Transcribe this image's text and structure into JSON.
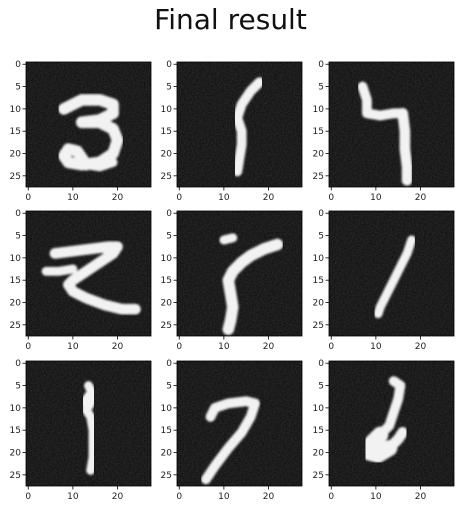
{
  "title": "Final result",
  "chart_data": {
    "type": "image-grid",
    "title": "Final result",
    "rows": 3,
    "cols": 3,
    "image_size": [
      28,
      28
    ],
    "colormap": "gray",
    "xlim": [
      0,
      27
    ],
    "ylim": [
      27,
      0
    ],
    "x_ticks": [
      0,
      10,
      20
    ],
    "y_ticks": [
      0,
      5,
      10,
      15,
      20,
      25
    ],
    "panels": [
      {
        "depicts": "3",
        "strokes": [
          {
            "w": 2.6,
            "pts": [
              [
                8,
                10
              ],
              [
                12,
                8
              ],
              [
                16,
                8
              ],
              [
                19,
                9
              ],
              [
                19,
                11
              ],
              [
                16,
                12.5
              ],
              [
                12,
                13
              ]
            ]
          },
          {
            "w": 2.6,
            "pts": [
              [
                12,
                13
              ],
              [
                16,
                13
              ],
              [
                19,
                14.5
              ],
              [
                20,
                17
              ],
              [
                19,
                20
              ],
              [
                16,
                22
              ],
              [
                12,
                22.5
              ],
              [
                9,
                22
              ],
              [
                8,
                20.5
              ],
              [
                9,
                19
              ],
              [
                11,
                19.5
              ],
              [
                12,
                21
              ],
              [
                13,
                22.5
              ]
            ]
          },
          {
            "w": 2.0,
            "pts": [
              [
                13,
                22.5
              ],
              [
                16,
                23
              ],
              [
                19,
                22
              ]
            ]
          }
        ]
      },
      {
        "depicts": "1",
        "strokes": [
          {
            "w": 2.2,
            "pts": [
              [
                18,
                4
              ],
              [
                16,
                6
              ],
              [
                14,
                9
              ],
              [
                13,
                12
              ],
              [
                14,
                15
              ],
              [
                14,
                18
              ],
              [
                13.5,
                21
              ],
              [
                13,
                24
              ]
            ]
          }
        ]
      },
      {
        "depicts": "4",
        "strokes": [
          {
            "w": 2.2,
            "pts": [
              [
                7,
                5
              ],
              [
                8,
                8
              ],
              [
                8,
                11
              ],
              [
                11,
                11.5
              ],
              [
                14,
                11
              ],
              [
                16,
                11
              ]
            ]
          },
          {
            "w": 2.4,
            "pts": [
              [
                16,
                11
              ],
              [
                16.5,
                15
              ],
              [
                16.5,
                19
              ],
              [
                17,
                23
              ],
              [
                17,
                26
              ]
            ]
          }
        ]
      },
      {
        "depicts": "z",
        "strokes": [
          {
            "w": 2.4,
            "pts": [
              [
                6,
                9
              ],
              [
                10,
                8.5
              ],
              [
                14,
                8
              ],
              [
                18,
                7.5
              ],
              [
                20,
                7.5
              ],
              [
                19,
                9
              ],
              [
                16,
                11
              ],
              [
                13,
                13
              ],
              [
                10,
                15
              ],
              [
                9,
                16
              ],
              [
                10,
                17.5
              ],
              [
                13,
                19
              ],
              [
                17,
                20.5
              ],
              [
                21,
                21.5
              ],
              [
                24,
                21.5
              ]
            ]
          },
          {
            "w": 2.0,
            "pts": [
              [
                4,
                13
              ],
              [
                7,
                13
              ],
              [
                10,
                12.5
              ]
            ]
          }
        ]
      },
      {
        "depicts": "i",
        "strokes": [
          {
            "w": 2.0,
            "pts": [
              [
                10,
                6
              ],
              [
                12,
                5.5
              ]
            ]
          },
          {
            "w": 2.6,
            "pts": [
              [
                22,
                7
              ],
              [
                19,
                8
              ],
              [
                16,
                9.5
              ],
              [
                14,
                11
              ],
              [
                12,
                13
              ],
              [
                11,
                15
              ],
              [
                11.5,
                18
              ],
              [
                12,
                21
              ],
              [
                11.5,
                24
              ],
              [
                11,
                26
              ]
            ]
          }
        ]
      },
      {
        "depicts": "1",
        "strokes": [
          {
            "w": 2.0,
            "pts": [
              [
                18,
                6
              ],
              [
                17,
                9
              ],
              [
                15.5,
                12
              ],
              [
                14,
                15
              ],
              [
                12.5,
                18
              ],
              [
                11,
                21
              ],
              [
                10.5,
                22.5
              ]
            ]
          }
        ]
      },
      {
        "depicts": "1",
        "strokes": [
          {
            "w": 2.0,
            "pts": [
              [
                13.5,
                5
              ],
              [
                14.5,
                7
              ],
              [
                14,
                9
              ],
              [
                13,
                10.5
              ],
              [
                14,
                12
              ],
              [
                14.5,
                15
              ],
              [
                14.5,
                18
              ],
              [
                14.5,
                21
              ],
              [
                14,
                24
              ]
            ]
          },
          {
            "w": 1.6,
            "pts": [
              [
                13,
                10
              ],
              [
                12.5,
                8.5
              ],
              [
                13.5,
                7
              ]
            ]
          }
        ]
      },
      {
        "depicts": "7",
        "strokes": [
          {
            "w": 2.2,
            "pts": [
              [
                7,
                12
              ],
              [
                8,
                10
              ],
              [
                11,
                9
              ],
              [
                15,
                8.5
              ],
              [
                17,
                9
              ],
              [
                16,
                12
              ],
              [
                14,
                15.5
              ],
              [
                11,
                19
              ],
              [
                8,
                23
              ],
              [
                6,
                26
              ]
            ]
          }
        ]
      },
      {
        "depicts": "2",
        "strokes": [
          {
            "w": 2.2,
            "pts": [
              [
                14,
                4
              ],
              [
                15.5,
                5
              ],
              [
                15,
                8
              ],
              [
                14,
                11
              ],
              [
                13,
                14
              ],
              [
                11,
                16
              ]
            ]
          },
          {
            "w": 3.6,
            "pts": [
              [
                11,
                16
              ],
              [
                9,
                18
              ],
              [
                8.5,
                20
              ],
              [
                10.5,
                20.5
              ],
              [
                13,
                19
              ]
            ]
          },
          {
            "w": 2.4,
            "pts": [
              [
                13,
                19
              ],
              [
                15,
                17
              ],
              [
                16,
                15.5
              ]
            ]
          }
        ]
      }
    ]
  }
}
